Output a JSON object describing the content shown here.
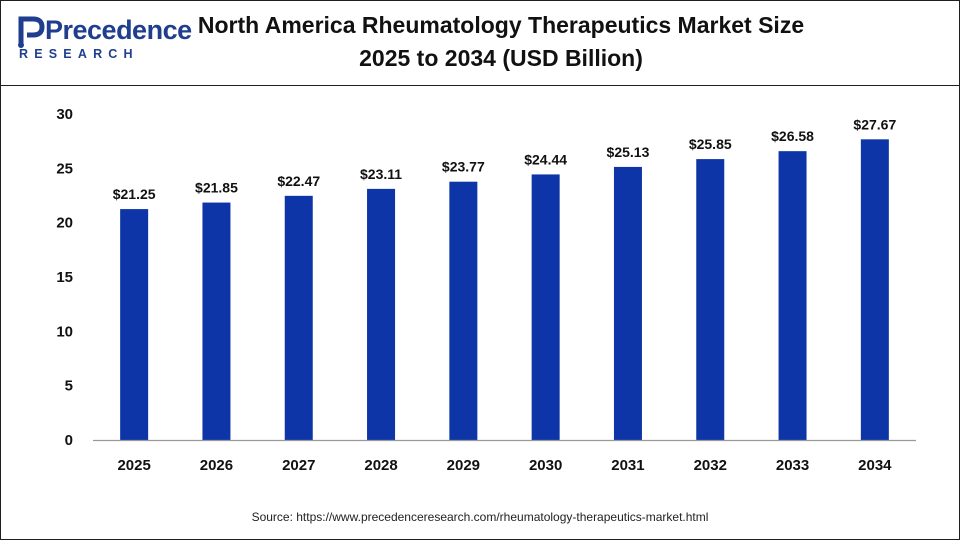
{
  "brand": {
    "logo_main": "Precedence",
    "logo_sub": "RESEARCH",
    "color": "#1f3e8f"
  },
  "header": {
    "title_line1": "North America Rheumatology Therapeutics Market Size",
    "title_line2": "2025 to 2034 (USD Billion)"
  },
  "chart_data": {
    "type": "bar",
    "categories": [
      "2025",
      "2026",
      "2027",
      "2028",
      "2029",
      "2030",
      "2031",
      "2032",
      "2033",
      "2034"
    ],
    "values": [
      21.25,
      21.85,
      22.47,
      23.11,
      23.77,
      24.44,
      25.13,
      25.85,
      26.58,
      27.67
    ],
    "data_labels": [
      "$21.25",
      "$21.85",
      "$22.47",
      "$23.11",
      "$23.77",
      "$24.44",
      "$25.13",
      "$25.85",
      "$26.58",
      "$27.67"
    ],
    "y_ticks": [
      "0",
      "5",
      "10",
      "15",
      "20",
      "25",
      "30"
    ],
    "ylim": [
      0,
      30
    ],
    "title": "North America Rheumatology Therapeutics Market Size 2025 to 2034 (USD Billion)",
    "xlabel": "",
    "ylabel": "",
    "grid": false,
    "bar_color": "#0d35a8",
    "legend": "none"
  },
  "footer": {
    "source": "Source: https://www.precedenceresearch.com/rheumatology-therapeutics-market.html"
  }
}
